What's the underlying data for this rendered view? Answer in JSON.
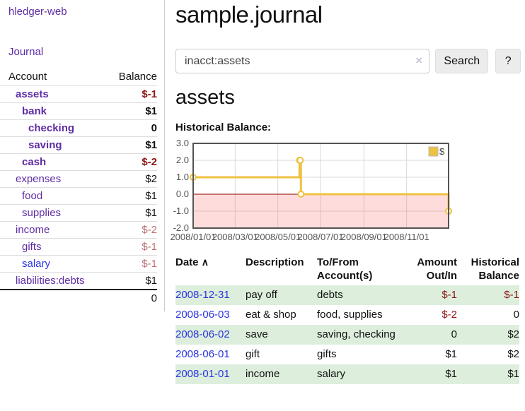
{
  "sidebar": {
    "brand": "hledger-web",
    "journal_link": "Journal",
    "accounts_table": {
      "headers": {
        "account": "Account",
        "balance": "Balance"
      },
      "rows": [
        {
          "name": "assets",
          "balance": "$-1",
          "level": 1,
          "bold": true,
          "balance_style": "negative"
        },
        {
          "name": "bank",
          "balance": "$1",
          "level": 2,
          "bold": true,
          "balance_style": "normal"
        },
        {
          "name": "checking",
          "balance": "0",
          "level": 3,
          "bold": true,
          "balance_style": "normal"
        },
        {
          "name": "saving",
          "balance": "$1",
          "level": 3,
          "bold": true,
          "balance_style": "normal"
        },
        {
          "name": "cash",
          "balance": "$-2",
          "level": 2,
          "bold": true,
          "balance_style": "negative"
        },
        {
          "name": "expenses",
          "balance": "$2",
          "level": 1,
          "bold": false,
          "balance_style": "normal"
        },
        {
          "name": "food",
          "balance": "$1",
          "level": 2,
          "bold": false,
          "balance_style": "normal"
        },
        {
          "name": "supplies",
          "balance": "$1",
          "level": 2,
          "bold": false,
          "balance_style": "normal"
        },
        {
          "name": "income",
          "balance": "$-2",
          "level": 1,
          "bold": false,
          "balance_style": "negative-dim"
        },
        {
          "name": "gifts",
          "balance": "$-1",
          "level": 2,
          "bold": false,
          "balance_style": "negative-dim"
        },
        {
          "name": "salary",
          "balance": "$-1",
          "level": 2,
          "bold": false,
          "balance_style": "negative-dim",
          "link_style": "unvisited"
        },
        {
          "name": "liabilities:debts",
          "balance": "$1",
          "level": 1,
          "bold": false,
          "balance_style": "normal"
        }
      ],
      "total": "0"
    }
  },
  "header": {
    "title": "sample.journal"
  },
  "search": {
    "query": "inacct:assets",
    "clear_icon": "×",
    "button_label": "Search",
    "help_label": "?"
  },
  "account_page": {
    "heading": "assets",
    "chart_label": "Historical Balance:"
  },
  "chart_data": {
    "type": "line",
    "title": "Historical Balance",
    "step": true,
    "series": [
      {
        "name": "$",
        "color": "#EDC240",
        "points": [
          [
            "2008-01-01",
            1
          ],
          [
            "2008-06-01",
            2
          ],
          [
            "2008-06-02",
            2
          ],
          [
            "2008-06-03",
            0
          ],
          [
            "2008-12-31",
            -1
          ]
        ]
      }
    ],
    "x_range": [
      "2008-01-01",
      "2008-12-31"
    ],
    "x_ticks": [
      "2008/01/01",
      "2008/03/01",
      "2008/05/01",
      "2008/07/01",
      "2008/09/01",
      "2008/11/01"
    ],
    "y_ticks": [
      "3.0",
      "2.0",
      "1.0",
      "0.0",
      "-1.0",
      "-2.0"
    ],
    "ylim": [
      -2,
      3
    ],
    "grid": true,
    "legend": {
      "label": "$",
      "position": "top-right"
    },
    "colors": {
      "line": "#EDC240",
      "negative_region_fill": "rgba(255,80,80,0.2)",
      "zero_line": "#8b0000",
      "plot_border": "#545454",
      "gridline": "#d9d9d9",
      "tick_text": "#545454"
    }
  },
  "register": {
    "headers": {
      "date": "Date",
      "sort_arrow": "∧",
      "description": "Description",
      "accounts": "To/From Account(s)",
      "amount": "Amount Out/In",
      "balance": "Historical Balance"
    },
    "rows": [
      {
        "date": "2008-12-31",
        "description": "pay off",
        "accounts": "debts",
        "amount": "$-1",
        "balance": "$-1"
      },
      {
        "date": "2008-06-03",
        "description": "eat & shop",
        "accounts": "food, supplies",
        "amount": "$-2",
        "balance": "0"
      },
      {
        "date": "2008-06-02",
        "description": "save",
        "accounts": "saving, checking",
        "amount": "0",
        "balance": "$2"
      },
      {
        "date": "2008-06-01",
        "description": "gift",
        "accounts": "gifts",
        "amount": "$1",
        "balance": "$2"
      },
      {
        "date": "2008-01-01",
        "description": "income",
        "accounts": "salary",
        "amount": "$1",
        "balance": "$1"
      }
    ]
  }
}
